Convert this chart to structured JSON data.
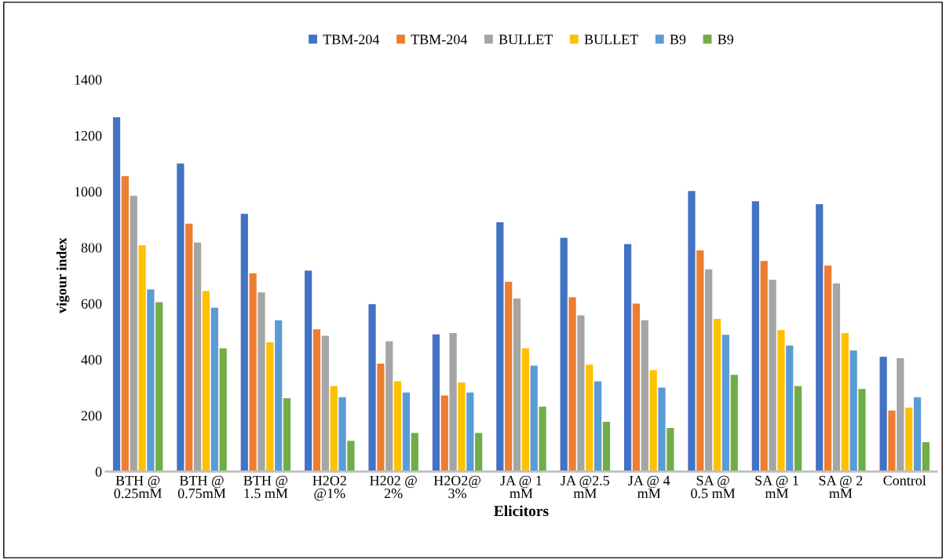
{
  "chart_data": {
    "type": "bar",
    "xlabel": "Elicitors",
    "ylabel": "vigour index",
    "categories": [
      "BTH @\n0.25mM",
      "BTH @\n0.75mM",
      "BTH @\n1.5 mM",
      "H2O2\n@1%",
      "H202 @\n2%",
      "H2O2@\n3%",
      "JA @ 1\nmM",
      "JA @2.5\nmM",
      "JA @ 4\nmM",
      "SA @\n0.5 mM",
      "SA @ 1\nmM",
      "SA @ 2\nmM",
      "Control"
    ],
    "series": [
      {
        "name": "TBM-204",
        "color": "#4472c4",
        "values": [
          1265,
          1100,
          920,
          718,
          598,
          490,
          890,
          835,
          812,
          1002,
          965,
          955,
          410
        ]
      },
      {
        "name": "TBM-204",
        "color": "#ed7d31",
        "values": [
          1055,
          885,
          708,
          508,
          385,
          272,
          678,
          622,
          600,
          790,
          752,
          735,
          218
        ]
      },
      {
        "name": "BULLET",
        "color": "#a5a5a5",
        "values": [
          985,
          818,
          640,
          485,
          465,
          495,
          618,
          558,
          540,
          722,
          685,
          672,
          405
        ]
      },
      {
        "name": "BULLET",
        "color": "#ffc000",
        "values": [
          808,
          645,
          462,
          305,
          322,
          318,
          440,
          382,
          362,
          545,
          505,
          495,
          228
        ]
      },
      {
        "name": "B9",
        "color": "#5b9bd5",
        "values": [
          650,
          585,
          540,
          265,
          282,
          282,
          378,
          322,
          300,
          488,
          450,
          432,
          265
        ]
      },
      {
        "name": "B9",
        "color": "#70ad47",
        "values": [
          605,
          440,
          262,
          110,
          138,
          138,
          232,
          178,
          155,
          345,
          305,
          295,
          105
        ]
      }
    ],
    "ylim": [
      0,
      1400
    ],
    "yticks": [
      0,
      200,
      400,
      600,
      800,
      1000,
      1200,
      1400
    ],
    "grid": false,
    "legend": "top"
  }
}
